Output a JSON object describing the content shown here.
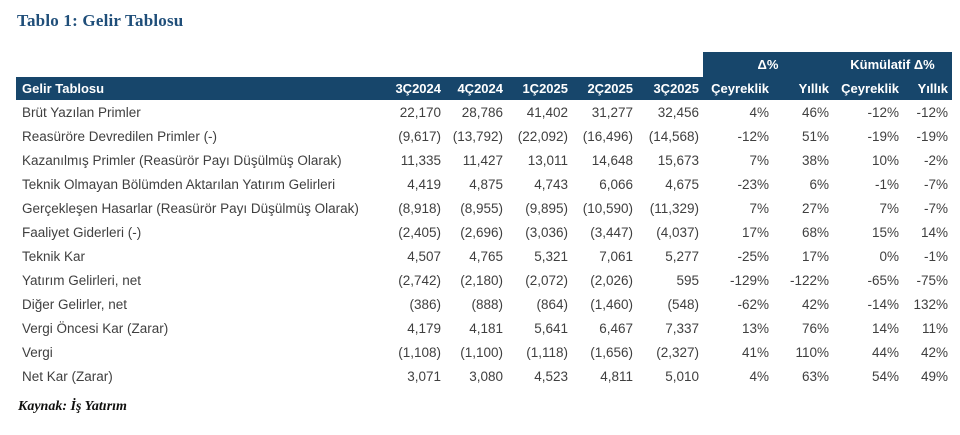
{
  "page": {
    "title": "Tablo 1: Gelir Tablosu",
    "source": "Kaynak: İş Yatırım"
  },
  "colors": {
    "header_navy": "#17466b",
    "title_blue": "#1f4e79",
    "body_text": "#3f3f3f"
  },
  "table": {
    "corner_label": "Gelir Tablosu",
    "group_headers": {
      "delta": "Δ%",
      "cumulative": "Kümülatif Δ%"
    },
    "columns": [
      "3Ç2024",
      "4Ç2024",
      "1Ç2025",
      "2Ç2025",
      "3Ç2025",
      "Çeyreklik",
      "Yıllık",
      "Çeyreklik",
      "Yıllık"
    ],
    "rows": [
      {
        "label": "Brüt Yazılan Primler",
        "values": [
          "22,170",
          "28,786",
          "41,402",
          "31,277",
          "32,456",
          "4%",
          "46%",
          "-12%",
          "-12%"
        ]
      },
      {
        "label": "Reasüröre Devredilen Primler (-)",
        "values": [
          "(9,617)",
          "(13,792)",
          "(22,092)",
          "(16,496)",
          "(14,568)",
          "-12%",
          "51%",
          "-19%",
          "-19%"
        ]
      },
      {
        "label": "Kazanılmış Primler (Reasürör Payı Düşülmüş Olarak)",
        "values": [
          "11,335",
          "11,427",
          "13,011",
          "14,648",
          "15,673",
          "7%",
          "38%",
          "10%",
          "-2%"
        ]
      },
      {
        "label": "Teknik Olmayan Bölümden Aktarılan Yatırım Gelirleri",
        "values": [
          "4,419",
          "4,875",
          "4,743",
          "6,066",
          "4,675",
          "-23%",
          "6%",
          "-1%",
          "-7%"
        ]
      },
      {
        "label": "Gerçekleşen Hasarlar (Reasürör Payı Düşülmüş Olarak)",
        "values": [
          "(8,918)",
          "(8,955)",
          "(9,895)",
          "(10,590)",
          "(11,329)",
          "7%",
          "27%",
          "7%",
          "-7%"
        ]
      },
      {
        "label": "Faaliyet Giderleri (-)",
        "values": [
          "(2,405)",
          "(2,696)",
          "(3,036)",
          "(3,447)",
          "(4,037)",
          "17%",
          "68%",
          "15%",
          "14%"
        ]
      },
      {
        "label": "Teknik Kar",
        "values": [
          "4,507",
          "4,765",
          "5,321",
          "7,061",
          "5,277",
          "-25%",
          "17%",
          "0%",
          "-1%"
        ]
      },
      {
        "label": "Yatırım Gelirleri, net",
        "values": [
          "(2,742)",
          "(2,180)",
          "(2,072)",
          "(2,026)",
          "595",
          "-129%",
          "-122%",
          "-65%",
          "-75%"
        ]
      },
      {
        "label": "Diğer Gelirler, net",
        "values": [
          "(386)",
          "(888)",
          "(864)",
          "(1,460)",
          "(548)",
          "-62%",
          "42%",
          "-14%",
          "132%"
        ]
      },
      {
        "label": "Vergi Öncesi Kar (Zarar)",
        "values": [
          "4,179",
          "4,181",
          "5,641",
          "6,467",
          "7,337",
          "13%",
          "76%",
          "14%",
          "11%"
        ]
      },
      {
        "label": "Vergi",
        "values": [
          "(1,108)",
          "(1,100)",
          "(1,118)",
          "(1,656)",
          "(2,327)",
          "41%",
          "110%",
          "44%",
          "42%"
        ]
      },
      {
        "label": "Net Kar (Zarar)",
        "values": [
          "3,071",
          "3,080",
          "4,523",
          "4,811",
          "5,010",
          "4%",
          "63%",
          "54%",
          "49%"
        ]
      }
    ]
  }
}
